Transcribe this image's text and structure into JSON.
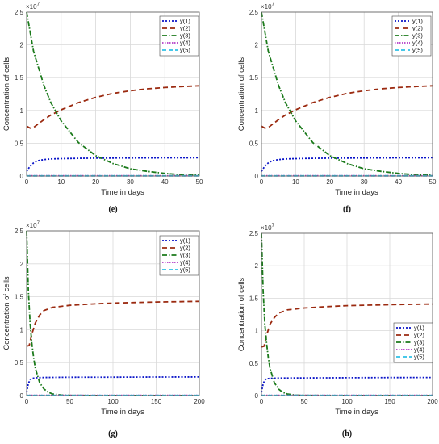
{
  "chart_data": [
    {
      "panel": "e",
      "caption": "(e)",
      "type": "line",
      "xlabel": "Time in days",
      "ylabel": "Concentration of cells",
      "y_multiplier": "×10",
      "y_exponent": "7",
      "xlim": [
        0,
        50
      ],
      "ylim": [
        0,
        2.5
      ],
      "xticks": [
        "0",
        "10",
        "20",
        "30",
        "40",
        "50"
      ],
      "yticks": [
        "0",
        "0.5",
        "1",
        "1.5",
        "2",
        "2.5"
      ],
      "grid": true,
      "legend_position": "top-right",
      "series": [
        {
          "name": "y(1)",
          "color": "#0a14c8",
          "dash": "2 2",
          "x": [
            0,
            1,
            2,
            3,
            5,
            7,
            10,
            15,
            20,
            25,
            30,
            40,
            50
          ],
          "values": [
            0.07,
            0.15,
            0.2,
            0.23,
            0.25,
            0.26,
            0.265,
            0.27,
            0.272,
            0.274,
            0.275,
            0.277,
            0.278
          ]
        },
        {
          "name": "y(2)",
          "color": "#9b2a10",
          "dash": "6 4",
          "x": [
            0,
            1,
            2,
            3,
            5,
            7,
            10,
            15,
            20,
            25,
            30,
            35,
            40,
            45,
            50
          ],
          "values": [
            0.76,
            0.73,
            0.74,
            0.78,
            0.86,
            0.93,
            1.01,
            1.12,
            1.2,
            1.26,
            1.3,
            1.33,
            1.35,
            1.365,
            1.375
          ]
        },
        {
          "name": "y(3)",
          "color": "#1b7a1b",
          "dash": "6 2 1.5 2",
          "x": [
            0,
            2,
            5,
            7,
            10,
            15,
            20,
            25,
            30,
            35,
            40,
            45,
            50
          ],
          "values": [
            2.5,
            1.9,
            1.38,
            1.12,
            0.84,
            0.51,
            0.31,
            0.19,
            0.11,
            0.07,
            0.04,
            0.02,
            0.012
          ]
        },
        {
          "name": "y(4)",
          "color": "#b43cc8",
          "dash": "1.5 1.5",
          "x": [
            0,
            50
          ],
          "values": [
            0.004,
            0.004
          ]
        },
        {
          "name": "y(5)",
          "color": "#2ec0e6",
          "dash": "5 3",
          "x": [
            0,
            50
          ],
          "values": [
            0.002,
            0.002
          ]
        }
      ]
    },
    {
      "panel": "f",
      "caption": "(f)",
      "type": "line",
      "xlabel": "Time in days",
      "ylabel": "Concentration of cells",
      "y_multiplier": "×10",
      "y_exponent": "7",
      "xlim": [
        0,
        50
      ],
      "ylim": [
        0,
        2.5
      ],
      "xticks": [
        "0",
        "10",
        "20",
        "30",
        "40",
        "50"
      ],
      "yticks": [
        "0",
        "0.5",
        "1",
        "1.5",
        "2",
        "2.5"
      ],
      "grid": true,
      "legend_position": "top-right",
      "series": [
        {
          "name": "y(1)",
          "color": "#0a14c8",
          "dash": "2 2",
          "x": [
            0,
            1,
            2,
            3,
            5,
            7,
            10,
            15,
            20,
            25,
            30,
            40,
            50
          ],
          "values": [
            0.07,
            0.15,
            0.2,
            0.23,
            0.25,
            0.26,
            0.265,
            0.27,
            0.272,
            0.274,
            0.275,
            0.277,
            0.278
          ]
        },
        {
          "name": "y(2)",
          "color": "#9b2a10",
          "dash": "6 4",
          "x": [
            0,
            1,
            2,
            3,
            5,
            7,
            10,
            15,
            20,
            25,
            30,
            35,
            40,
            45,
            50
          ],
          "values": [
            0.76,
            0.73,
            0.74,
            0.78,
            0.86,
            0.93,
            1.01,
            1.12,
            1.2,
            1.26,
            1.3,
            1.33,
            1.35,
            1.365,
            1.375
          ]
        },
        {
          "name": "y(3)",
          "color": "#1b7a1b",
          "dash": "6 2 1.5 2",
          "x": [
            0,
            2,
            5,
            7,
            10,
            15,
            20,
            25,
            30,
            35,
            40,
            45,
            50
          ],
          "values": [
            2.5,
            1.9,
            1.38,
            1.12,
            0.84,
            0.51,
            0.31,
            0.19,
            0.11,
            0.07,
            0.04,
            0.02,
            0.012
          ]
        },
        {
          "name": "y(4)",
          "color": "#b43cc8",
          "dash": "1.5 1.5",
          "x": [
            0,
            50
          ],
          "values": [
            0.004,
            0.004
          ]
        },
        {
          "name": "y(5)",
          "color": "#2ec0e6",
          "dash": "5 3",
          "x": [
            0,
            50
          ],
          "values": [
            0.002,
            0.002
          ]
        }
      ]
    },
    {
      "panel": "g",
      "caption": "(g)",
      "type": "line",
      "xlabel": "Time in days",
      "ylabel": "Concentration of cells",
      "y_multiplier": "×10",
      "y_exponent": "7",
      "xlim": [
        0,
        200
      ],
      "ylim": [
        0,
        2.5
      ],
      "xticks": [
        "0",
        "50",
        "100",
        "150",
        "200"
      ],
      "yticks": [
        "0",
        "0.5",
        "1",
        "1.5",
        "2",
        "2.5"
      ],
      "grid": true,
      "legend_position": "top-right",
      "series": [
        {
          "name": "y(1)",
          "color": "#0a14c8",
          "dash": "2 2",
          "x": [
            0,
            2,
            4,
            6,
            10,
            20,
            50,
            100,
            150,
            200
          ],
          "values": [
            0.05,
            0.18,
            0.24,
            0.26,
            0.27,
            0.275,
            0.278,
            0.28,
            0.282,
            0.283
          ]
        },
        {
          "name": "y(2)",
          "color": "#9b2a10",
          "dash": "6 4",
          "x": [
            0,
            3,
            6,
            10,
            15,
            20,
            30,
            50,
            75,
            100,
            150,
            200
          ],
          "values": [
            0.75,
            0.76,
            0.93,
            1.1,
            1.22,
            1.29,
            1.34,
            1.37,
            1.39,
            1.405,
            1.42,
            1.43
          ]
        },
        {
          "name": "y(3)",
          "color": "#1b7a1b",
          "dash": "6 2 1.5 2",
          "x": [
            0,
            2,
            4,
            6,
            8,
            10,
            15,
            20,
            25,
            30,
            40,
            50,
            100,
            200
          ],
          "values": [
            2.5,
            1.6,
            1.1,
            0.8,
            0.58,
            0.42,
            0.2,
            0.1,
            0.05,
            0.025,
            0.008,
            0.003,
            0.001,
            0.001
          ]
        },
        {
          "name": "y(4)",
          "color": "#b43cc8",
          "dash": "1.5 1.5",
          "x": [
            0,
            200
          ],
          "values": [
            0.004,
            0.004
          ]
        },
        {
          "name": "y(5)",
          "color": "#2ec0e6",
          "dash": "5 3",
          "x": [
            0,
            200
          ],
          "values": [
            0.002,
            0.002
          ]
        }
      ]
    },
    {
      "panel": "h",
      "caption": "(h)",
      "type": "line",
      "xlabel": "Time in days",
      "ylabel": "Concentration of cells",
      "y_multiplier": "×10",
      "y_exponent": "7",
      "xlim": [
        0,
        200
      ],
      "ylim": [
        0,
        2.5
      ],
      "xticks": [
        "0",
        "50",
        "100",
        "150",
        "200"
      ],
      "yticks": [
        "0",
        "0.5",
        "1",
        "1.5",
        "2",
        "2.5"
      ],
      "grid": true,
      "legend_position": "bottom-right",
      "series": [
        {
          "name": "y(1)",
          "color": "#0a14c8",
          "dash": "2 2",
          "x": [
            0,
            2,
            4,
            6,
            10,
            20,
            50,
            100,
            150,
            200
          ],
          "values": [
            0.05,
            0.18,
            0.24,
            0.26,
            0.265,
            0.27,
            0.273,
            0.275,
            0.277,
            0.278
          ]
        },
        {
          "name": "y(2)",
          "color": "#9b2a10",
          "dash": "6 4",
          "x": [
            0,
            3,
            6,
            10,
            15,
            20,
            30,
            50,
            75,
            100,
            150,
            200
          ],
          "values": [
            0.75,
            0.76,
            0.93,
            1.1,
            1.2,
            1.27,
            1.32,
            1.35,
            1.37,
            1.385,
            1.4,
            1.41
          ]
        },
        {
          "name": "y(3)",
          "color": "#1b7a1b",
          "dash": "6 2 1.5 2",
          "x": [
            0,
            2,
            4,
            6,
            8,
            10,
            15,
            20,
            25,
            30,
            40,
            50,
            100,
            200
          ],
          "values": [
            2.5,
            1.6,
            1.1,
            0.8,
            0.58,
            0.42,
            0.2,
            0.1,
            0.05,
            0.025,
            0.008,
            0.003,
            0.001,
            0.001
          ]
        },
        {
          "name": "y(4)",
          "color": "#b43cc8",
          "dash": "1.5 1.5",
          "x": [
            0,
            200
          ],
          "values": [
            0.004,
            0.004
          ]
        },
        {
          "name": "y(5)",
          "color": "#2ec0e6",
          "dash": "5 3",
          "x": [
            0,
            200
          ],
          "values": [
            0.002,
            0.002
          ]
        }
      ]
    }
  ]
}
